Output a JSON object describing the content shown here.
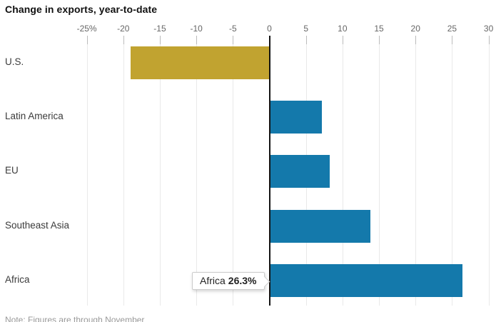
{
  "title": "Change in exports, year-to-date",
  "note": "Note: Figures are through November",
  "colors": {
    "negative_bar": "#c1a330",
    "positive_bar": "#1479ab",
    "zero_line": "#141414",
    "gridline": "#e9e9e9",
    "tick": "#bbbbbb",
    "axis_label": "#666666",
    "category_label": "#3b3b3b"
  },
  "tooltip": {
    "label": "Africa",
    "value": "26.3%"
  },
  "chart_data": {
    "type": "bar",
    "orientation": "horizontal",
    "title": "Change in exports, year-to-date",
    "categories": [
      "U.S.",
      "Latin America",
      "EU",
      "Southeast Asia",
      "Africa"
    ],
    "values": [
      -19.0,
      7.0,
      8.1,
      13.7,
      26.3
    ],
    "unit": "%",
    "xlim": [
      -28,
      31
    ],
    "grid": true,
    "x_ticks": [
      {
        "value": -25,
        "label": "-25%"
      },
      {
        "value": -20,
        "label": "-20"
      },
      {
        "value": -15,
        "label": "-15"
      },
      {
        "value": -10,
        "label": "-10"
      },
      {
        "value": -5,
        "label": "-5"
      },
      {
        "value": 0,
        "label": "0"
      },
      {
        "value": 5,
        "label": "5"
      },
      {
        "value": 10,
        "label": "10"
      },
      {
        "value": 15,
        "label": "15"
      },
      {
        "value": 20,
        "label": "20"
      },
      {
        "value": 25,
        "label": "25"
      },
      {
        "value": 30,
        "label": "30"
      }
    ],
    "highlighted": {
      "category": "Africa",
      "value_label": "26.3%"
    }
  }
}
